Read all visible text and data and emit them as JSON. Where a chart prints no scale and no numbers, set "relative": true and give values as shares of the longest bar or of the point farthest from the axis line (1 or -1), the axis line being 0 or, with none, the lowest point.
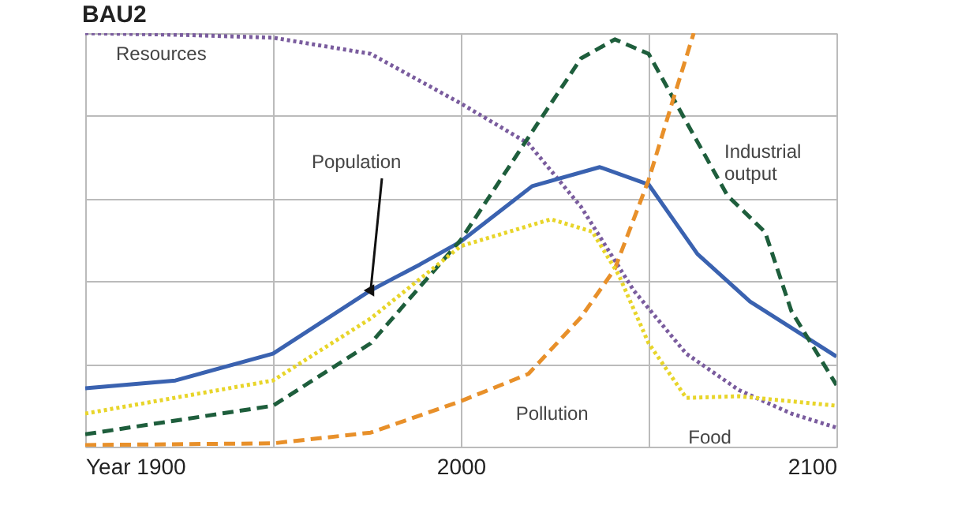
{
  "chart_data": {
    "type": "line",
    "title": "BAU2",
    "relative": true,
    "grid": true,
    "legend": false,
    "xlim": [
      1900,
      2100
    ],
    "xticks": [
      {
        "value": 1900,
        "label": "Year 1900"
      },
      {
        "value": 1950,
        "label": null
      },
      2000,
      {
        "value": 2050,
        "label": null
      },
      2100
    ],
    "series": [
      {
        "name": "Resources",
        "color": "#7a5c9e",
        "line_style": "dotted",
        "x": [
          1900,
          1925,
          1950,
          1976,
          2000,
          2018,
          2032,
          2046,
          2060,
          2074,
          2088,
          2100
        ],
        "values": [
          1.0,
          0.996,
          0.989,
          0.95,
          0.83,
          0.733,
          0.58,
          0.378,
          0.225,
          0.137,
          0.08,
          0.046
        ]
      },
      {
        "name": "Population",
        "color": "#3a62b0",
        "line_style": "solid",
        "x": [
          1900,
          1924,
          1950,
          1976,
          1989,
          2000,
          2019,
          2037,
          2050,
          2063,
          2077,
          2100
        ],
        "values": [
          0.141,
          0.16,
          0.225,
          0.378,
          0.44,
          0.496,
          0.63,
          0.676,
          0.634,
          0.466,
          0.351,
          0.218
        ]
      },
      {
        "name": "Industrial output",
        "color": "#1e5e3c",
        "line_style": "dashed",
        "x": [
          1900,
          1950,
          1976,
          2000,
          2018,
          2032,
          2041,
          2050,
          2060,
          2071,
          2081,
          2088,
          2100
        ],
        "values": [
          0.03,
          0.099,
          0.25,
          0.5,
          0.748,
          0.939,
          0.985,
          0.95,
          0.786,
          0.607,
          0.519,
          0.328,
          0.149
        ]
      },
      {
        "name": "Pollution",
        "color": "#e8902a",
        "line_style": "dashed",
        "x": [
          1900,
          1950,
          1976,
          2000,
          2018,
          2032,
          2041,
          2050,
          2056,
          2062
        ],
        "values": [
          0.004,
          0.008,
          0.034,
          0.11,
          0.176,
          0.313,
          0.43,
          0.645,
          0.824,
          1.0
        ]
      },
      {
        "name": "Food",
        "color": "#e8d52a",
        "line_style": "dotted",
        "x": [
          1900,
          1950,
          1976,
          2000,
          2024,
          2035,
          2042,
          2050,
          2060,
          2074,
          2100
        ],
        "values": [
          0.08,
          0.16,
          0.31,
          0.485,
          0.55,
          0.52,
          0.416,
          0.25,
          0.118,
          0.122,
          0.099
        ]
      }
    ]
  }
}
